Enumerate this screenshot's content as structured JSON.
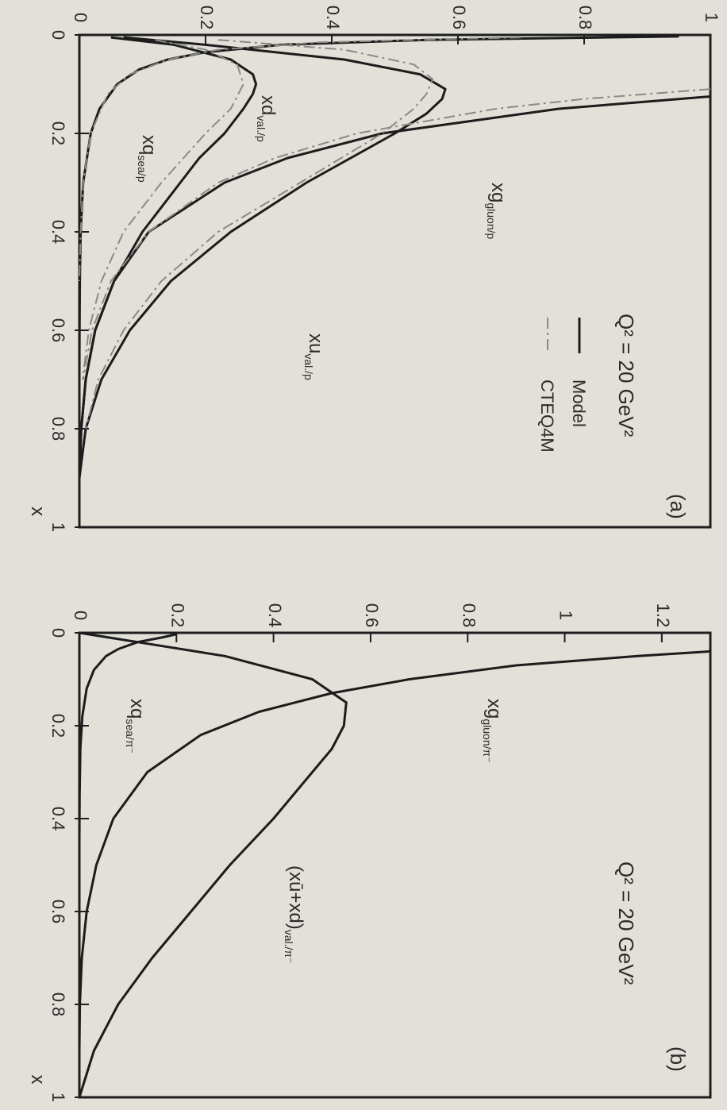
{
  "chart_data": [
    {
      "type": "line",
      "panel_label": "(a)",
      "annotation": "Q² = 20 GeV²",
      "xlabel": "x",
      "ylabel": "",
      "xlim": [
        0,
        1
      ],
      "ylim": [
        0,
        1
      ],
      "xticks": [
        "0",
        "0.2",
        "0.4",
        "0.6",
        "0.8",
        "1"
      ],
      "yticks": [
        "0",
        "0.2",
        "0.4",
        "0.6",
        "0.8",
        "1"
      ],
      "legend": [
        {
          "name": "Model",
          "style": "solid"
        },
        {
          "name": "CTEQ4M",
          "style": "dash-dot"
        }
      ],
      "series": [
        {
          "name": "xg",
          "label": "xg",
          "label_sub": "gluon/p",
          "model": "Model",
          "x": [
            0.01,
            0.03,
            0.06,
            0.1,
            0.125,
            0.15,
            0.2,
            0.25,
            0.3,
            0.4,
            0.5,
            0.6,
            0.7,
            0.8,
            0.9
          ],
          "y": [
            null,
            null,
            null,
            null,
            1.0,
            0.76,
            0.48,
            0.33,
            0.23,
            0.11,
            0.055,
            0.025,
            0.01,
            0.003,
            0.0
          ]
        },
        {
          "name": "xu_val",
          "label": "xu",
          "label_sub": "val./p",
          "model": "Model",
          "x": [
            0.005,
            0.02,
            0.05,
            0.08,
            0.11,
            0.13,
            0.16,
            0.2,
            0.25,
            0.3,
            0.4,
            0.5,
            0.6,
            0.7,
            0.8,
            0.9
          ],
          "y": [
            0.07,
            0.2,
            0.42,
            0.54,
            0.58,
            0.575,
            0.55,
            0.5,
            0.43,
            0.36,
            0.24,
            0.145,
            0.08,
            0.035,
            0.01,
            0.0
          ]
        },
        {
          "name": "xd_val",
          "label": "xd",
          "label_sub": "val./p",
          "model": "Model",
          "x": [
            0.005,
            0.02,
            0.05,
            0.08,
            0.1,
            0.12,
            0.15,
            0.2,
            0.25,
            0.3,
            0.4,
            0.5,
            0.6,
            0.7,
            0.8,
            0.9
          ],
          "y": [
            0.05,
            0.15,
            0.24,
            0.275,
            0.28,
            0.275,
            0.26,
            0.23,
            0.19,
            0.16,
            0.1,
            0.055,
            0.025,
            0.01,
            0.003,
            0.0
          ]
        },
        {
          "name": "xq_sea",
          "label": "xq",
          "label_sub": "sea/p",
          "model": "Model",
          "x": [
            0.003,
            0.01,
            0.02,
            0.035,
            0.05,
            0.07,
            0.1,
            0.15,
            0.2,
            0.3,
            0.4,
            0.5,
            0.6,
            0.7
          ],
          "y": [
            0.95,
            0.55,
            0.32,
            0.2,
            0.14,
            0.095,
            0.06,
            0.032,
            0.018,
            0.006,
            0.002,
            0.0007,
            0.0002,
            0.0
          ]
        },
        {
          "name": "xg_cteq",
          "model": "CTEQ4M",
          "x": [
            0.11,
            0.13,
            0.15,
            0.2,
            0.25,
            0.3,
            0.4,
            0.5,
            0.6,
            0.7
          ],
          "y": [
            1.0,
            0.8,
            0.66,
            0.44,
            0.31,
            0.22,
            0.11,
            0.05,
            0.02,
            0.006
          ]
        },
        {
          "name": "xu_cteq",
          "model": "CTEQ4M",
          "x": [
            0.01,
            0.03,
            0.06,
            0.09,
            0.12,
            0.15,
            0.2,
            0.3,
            0.4,
            0.5,
            0.6,
            0.7,
            0.8
          ],
          "y": [
            0.22,
            0.42,
            0.53,
            0.56,
            0.55,
            0.53,
            0.48,
            0.35,
            0.22,
            0.13,
            0.07,
            0.03,
            0.01
          ]
        },
        {
          "name": "xd_cteq",
          "model": "CTEQ4M",
          "x": [
            0.01,
            0.03,
            0.06,
            0.1,
            0.15,
            0.2,
            0.3,
            0.4,
            0.5,
            0.6,
            0.7
          ],
          "y": [
            0.12,
            0.2,
            0.25,
            0.26,
            0.24,
            0.2,
            0.13,
            0.07,
            0.035,
            0.015,
            0.005
          ]
        },
        {
          "name": "xq_sea_cteq",
          "model": "CTEQ4M",
          "x": [
            0.005,
            0.015,
            0.03,
            0.05,
            0.08,
            0.12,
            0.2,
            0.3,
            0.4,
            0.5
          ],
          "y": [
            0.7,
            0.38,
            0.22,
            0.14,
            0.08,
            0.045,
            0.018,
            0.006,
            0.002,
            0.0
          ]
        }
      ]
    },
    {
      "type": "line",
      "panel_label": "(b)",
      "annotation": "Q² = 20 GeV²",
      "xlabel": "x",
      "ylabel": "",
      "xlim": [
        0,
        1
      ],
      "ylim": [
        0,
        1.3
      ],
      "xticks": [
        "0",
        "0.2",
        "0.4",
        "0.6",
        "0.8",
        "1"
      ],
      "yticks": [
        "0",
        "0.2",
        "0.4",
        "0.6",
        "0.8",
        "1",
        "1.2"
      ],
      "series": [
        {
          "name": "xg_pi",
          "label": "xg",
          "label_sub": "gluon/π⁻",
          "x": [
            0.04,
            0.05,
            0.07,
            0.1,
            0.13,
            0.17,
            0.22,
            0.3,
            0.4,
            0.5,
            0.6,
            0.7,
            0.8,
            0.9
          ],
          "y": [
            1.3,
            1.15,
            0.9,
            0.68,
            0.52,
            0.37,
            0.25,
            0.14,
            0.07,
            0.035,
            0.015,
            0.005,
            0.001,
            0.0
          ]
        },
        {
          "name": "val_pi",
          "label": "(xū+xd)",
          "label_sub": "val./π⁻",
          "x": [
            0.0,
            0.02,
            0.05,
            0.1,
            0.15,
            0.2,
            0.25,
            0.3,
            0.4,
            0.5,
            0.6,
            0.7,
            0.8,
            0.9,
            1.0
          ],
          "y": [
            0.0,
            0.12,
            0.3,
            0.48,
            0.55,
            0.545,
            0.52,
            0.48,
            0.4,
            0.31,
            0.23,
            0.15,
            0.08,
            0.03,
            0.0
          ]
        },
        {
          "name": "sea_pi",
          "label": "xq",
          "label_sub": "sea/π⁻",
          "x": [
            0.003,
            0.01,
            0.02,
            0.035,
            0.05,
            0.08,
            0.12,
            0.18,
            0.25,
            0.35,
            0.45
          ],
          "y": [
            0.2,
            0.17,
            0.12,
            0.08,
            0.055,
            0.03,
            0.015,
            0.006,
            0.002,
            0.0005,
            0.0
          ]
        }
      ]
    }
  ]
}
